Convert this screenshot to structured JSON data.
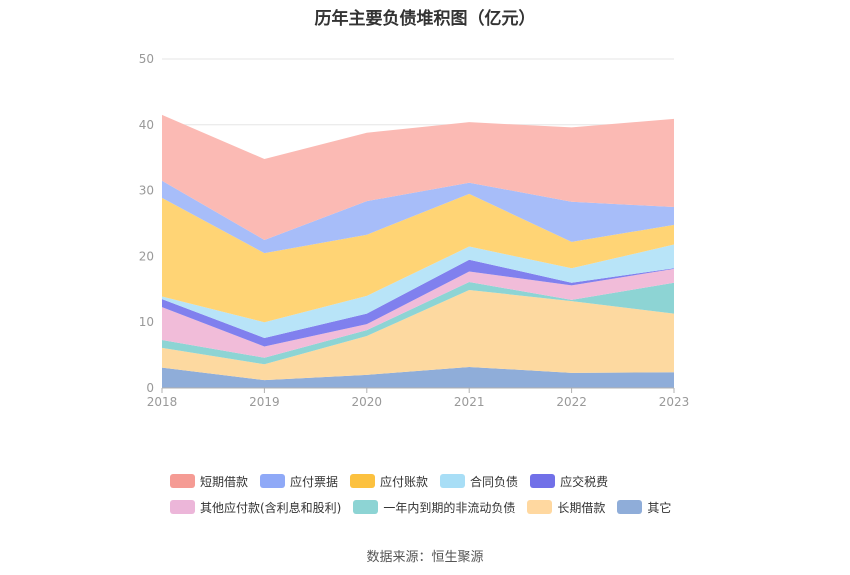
{
  "title": "历年主要负债堆积图（亿元）",
  "source": "数据来源：恒生聚源",
  "chart_data": {
    "type": "area",
    "stacked": true,
    "categories": [
      "2018",
      "2019",
      "2020",
      "2021",
      "2022",
      "2023"
    ],
    "ylim": [
      0,
      50
    ],
    "yticks": [
      0,
      10,
      20,
      30,
      40,
      50
    ],
    "grid": true,
    "legend_position": "bottom",
    "series": [
      {
        "name": "其它",
        "color": "#8fadd9",
        "values": [
          3.1,
          1.2,
          2.0,
          3.2,
          2.3,
          2.4
        ]
      },
      {
        "name": "长期借款",
        "color": "#fdd9a0",
        "values": [
          3.0,
          2.4,
          5.9,
          11.7,
          10.9,
          8.9
        ]
      },
      {
        "name": "一年内到期的非流动负债",
        "color": "#8dd4d4",
        "values": [
          1.2,
          1.0,
          0.9,
          1.2,
          0.2,
          4.7
        ]
      },
      {
        "name": "其他应付款(含利息和股利)",
        "color": "#f1bcd9",
        "values": [
          5.0,
          1.7,
          0.9,
          1.6,
          2.2,
          2.1
        ]
      },
      {
        "name": "应交税费",
        "color": "#8080ee",
        "values": [
          1.2,
          1.3,
          1.6,
          1.8,
          0.4,
          0.1
        ]
      },
      {
        "name": "合同负债",
        "color": "#b8e4f8",
        "values": [
          0.4,
          2.4,
          2.7,
          2.0,
          2.2,
          3.6
        ]
      },
      {
        "name": "应付账款",
        "color": "#ffd475",
        "values": [
          15.0,
          10.5,
          9.3,
          8.0,
          4.0,
          3.0
        ]
      },
      {
        "name": "应付票据",
        "color": "#a7bdf9",
        "values": [
          2.6,
          2.0,
          5.1,
          1.7,
          6.1,
          2.7
        ]
      },
      {
        "name": "短期借款",
        "color": "#fbbab4",
        "values": [
          10.0,
          12.3,
          10.4,
          9.2,
          11.3,
          13.4
        ]
      }
    ],
    "legend_rows": [
      [
        {
          "name": "短期借款",
          "color": "#f59b94"
        },
        {
          "name": "应付票据",
          "color": "#8fa9f7"
        },
        {
          "name": "应付账款",
          "color": "#fcc13f"
        },
        {
          "name": "合同负债",
          "color": "#a8def6"
        },
        {
          "name": "应交税费",
          "color": "#7170e8"
        }
      ],
      [
        {
          "name": "其他应付款(含利息和股利)",
          "color": "#ecb6d9"
        },
        {
          "name": "一年内到期的非流动负债",
          "color": "#8dd4d4"
        },
        {
          "name": "长期借款",
          "color": "#ffd8a0"
        },
        {
          "name": "其它",
          "color": "#8fadd9"
        }
      ]
    ]
  }
}
